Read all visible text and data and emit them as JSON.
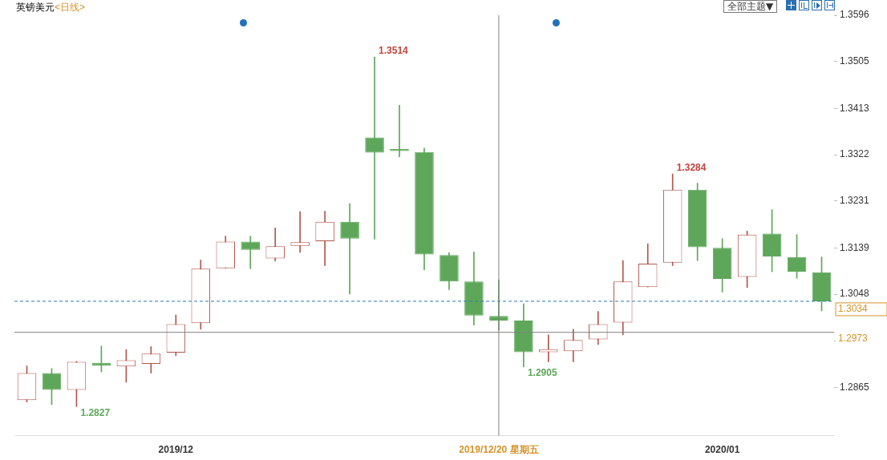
{
  "chart_data": {
    "type": "candlestick",
    "title": "英镑美元",
    "subtitle": "<日线>",
    "categories": [
      null,
      null,
      null,
      null,
      null,
      null,
      "2019/12",
      null,
      null,
      null,
      null,
      null,
      null,
      null,
      null,
      null,
      null,
      null,
      null,
      "2019/12/20 星期五",
      null,
      null,
      null,
      null,
      null,
      null,
      null,
      null,
      "2020/01",
      null,
      null,
      null,
      null
    ],
    "ohlc": [
      [
        1.284,
        1.2907,
        1.2836,
        1.2893
      ],
      [
        1.2893,
        1.2902,
        1.2831,
        1.286
      ],
      [
        1.286,
        1.2916,
        1.2827,
        1.2915
      ],
      [
        1.2913,
        1.2946,
        1.2895,
        1.2907
      ],
      [
        1.2906,
        1.2939,
        1.2875,
        1.2918
      ],
      [
        1.2911,
        1.2945,
        1.2893,
        1.2931
      ],
      [
        1.2933,
        1.3007,
        1.2927,
        1.2989
      ],
      [
        1.2991,
        1.3115,
        1.2979,
        1.3098
      ],
      [
        1.3099,
        1.3162,
        1.3099,
        1.3151
      ],
      [
        1.3151,
        1.3162,
        1.3098,
        1.3135
      ],
      [
        1.3118,
        1.3178,
        1.3113,
        1.3142
      ],
      [
        1.3143,
        1.321,
        1.313,
        1.315
      ],
      [
        1.3152,
        1.3211,
        1.3104,
        1.319
      ],
      [
        1.319,
        1.3226,
        1.3048,
        1.3157
      ],
      [
        1.3356,
        1.3514,
        1.3156,
        1.3326
      ],
      [
        1.3333,
        1.3419,
        1.3318,
        1.3329
      ],
      [
        1.3327,
        1.3335,
        1.3096,
        1.3126
      ],
      [
        1.3125,
        1.313,
        1.3057,
        1.3073
      ],
      [
        1.3073,
        1.3131,
        1.2987,
        1.3006
      ],
      [
        1.3005,
        1.3076,
        1.2977,
        1.2996
      ],
      [
        1.2996,
        1.3029,
        1.2905,
        1.2934
      ],
      [
        1.2934,
        1.2968,
        1.2915,
        1.294
      ],
      [
        1.2936,
        1.2979,
        1.2915,
        1.2958
      ],
      [
        1.2959,
        1.3014,
        1.2949,
        1.2989
      ],
      [
        1.2992,
        1.3114,
        1.2968,
        1.3073
      ],
      [
        1.3062,
        1.3147,
        1.3062,
        1.3108
      ],
      [
        1.311,
        1.3284,
        1.3104,
        1.3253
      ],
      [
        1.3253,
        1.3266,
        1.3114,
        1.314
      ],
      [
        1.3139,
        1.3157,
        1.3052,
        1.3078
      ],
      [
        1.3082,
        1.3172,
        1.3061,
        1.3165
      ],
      [
        1.3167,
        1.3214,
        1.3092,
        1.3122
      ],
      [
        1.3121,
        1.3165,
        1.3079,
        1.3092
      ],
      [
        1.3091,
        1.3121,
        1.3015,
        1.3034
      ]
    ],
    "colors": [
      "#b0574e",
      "#5ea75a",
      "#b0574e",
      "#5ea75a",
      "#b0574e",
      "#b0574e",
      "#b0574e",
      "#b0574e",
      "#b0574e",
      "#5ea75a",
      "#b0574e",
      "#b0574e",
      "#b0574e",
      "#5ea75a",
      "#5ea75a",
      "#5ea75a",
      "#5ea75a",
      "#5ea75a",
      "#5ea75a",
      "#5ea75a",
      "#5ea75a",
      "#b0574e",
      "#b0574e",
      "#b0574e",
      "#b0574e",
      "#b0574e",
      "#b0574e",
      "#5ea75a",
      "#5ea75a",
      "#b0574e",
      "#5ea75a",
      "#5ea75a",
      "#5ea75a"
    ],
    "ylim": [
      1.277,
      1.3596
    ],
    "yticks": [
      1.2865,
      {
        "value": 1.2956,
        "label": null
      },
      1.3048,
      1.3139,
      1.3231,
      1.3322,
      1.3413,
      1.3505,
      1.3596
    ],
    "ref_lines": [
      {
        "axis": "y",
        "value": 1.3034,
        "label": "1.3034",
        "color": "#2a7ab0",
        "line_style": "dashed"
      },
      {
        "axis": "y",
        "value": 1.2973,
        "label": "1.2973",
        "color": "#808080",
        "line_style": "solid"
      },
      {
        "axis": "x",
        "value": "2019/12/20 星期五",
        "color": "#808080",
        "line_style": "solid"
      }
    ],
    "annotations": [
      "1.3514",
      "1.3284",
      "1.2827",
      "1.2905",
      "全部主题▼"
    ],
    "legend": false
  }
}
